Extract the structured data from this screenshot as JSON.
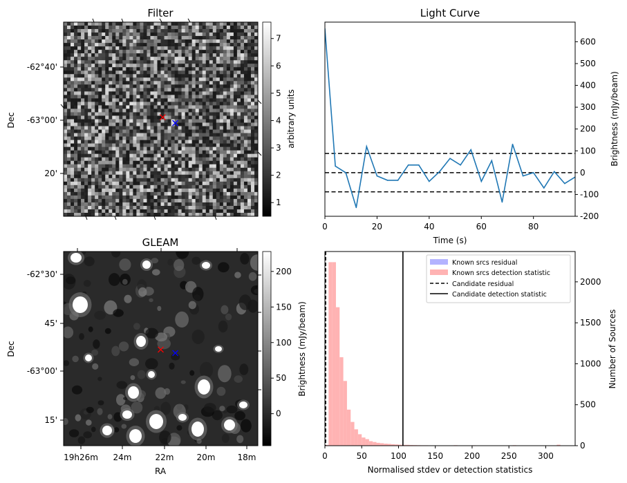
{
  "chart_data": [
    {
      "type": "heatmap",
      "title": "Filter",
      "ylabel": "Dec",
      "y_ticks": [
        "-62°40'",
        "-63°00'",
        "20'"
      ],
      "colorbar": {
        "label": "arbitrary units",
        "ticks": [
          "1",
          "2",
          "3",
          "4",
          "5",
          "6",
          "7"
        ],
        "range": [
          0.5,
          7.6
        ],
        "colormap": "gray"
      },
      "markers": [
        {
          "symbol": "x",
          "color": "#ff0000",
          "ra_frac": 0.51,
          "dec_frac": 0.49
        },
        {
          "symbol": "x",
          "color": "#0000ff",
          "ra_frac": 0.575,
          "dec_frac": 0.52
        }
      ]
    },
    {
      "type": "line",
      "title": "Light Curve",
      "xlabel": "Time (s)",
      "ylabel": "Brightness (mJy/beam)",
      "xlim": [
        0,
        96
      ],
      "ylim": [
        -200,
        690
      ],
      "x_ticks": [
        0,
        20,
        40,
        60,
        80
      ],
      "y_ticks": [
        -200,
        -100,
        0,
        100,
        200,
        300,
        400,
        500,
        600
      ],
      "series": [
        {
          "color": "#1f77b4",
          "x": [
            0,
            4,
            8,
            12,
            16,
            20,
            24,
            28,
            32,
            36,
            40,
            44,
            48,
            52,
            56,
            60,
            64,
            68,
            72,
            76,
            80,
            84,
            88,
            92,
            96
          ],
          "y": [
            660,
            30,
            0,
            -160,
            120,
            -15,
            -35,
            -35,
            35,
            35,
            -40,
            5,
            65,
            35,
            105,
            -40,
            55,
            -135,
            130,
            -15,
            0,
            -70,
            5,
            -50,
            -20
          ]
        }
      ],
      "hlines": [
        {
          "y": 88,
          "style": "dashed",
          "color": "#000000"
        },
        {
          "y": 0,
          "style": "dashed",
          "color": "#000000"
        },
        {
          "y": -88,
          "style": "dashed",
          "color": "#000000"
        }
      ]
    },
    {
      "type": "heatmap",
      "title": "GLEAM",
      "xlabel": "RA",
      "ylabel": "Dec",
      "x_ticks": [
        "19h26m",
        "24m",
        "22m",
        "20m",
        "18m"
      ],
      "y_ticks": [
        "-62°30'",
        "45'",
        "-63°00'",
        "15'"
      ],
      "colorbar": {
        "label": "Brightness (mJy/beam)",
        "ticks": [
          "0",
          "50",
          "100",
          "150",
          "200"
        ],
        "range": [
          -45,
          228
        ],
        "colormap": "gray"
      },
      "markers": [
        {
          "symbol": "x",
          "color": "#ff0000",
          "ra_frac": 0.5,
          "dec_frac": 0.505
        },
        {
          "symbol": "x",
          "color": "#0000ff",
          "ra_frac": 0.575,
          "dec_frac": 0.523
        }
      ]
    },
    {
      "type": "bar",
      "xlabel": "Normalised stdev or detection statistics",
      "ylabel": "Number of Sources",
      "xlim": [
        0,
        340
      ],
      "ylim": [
        0,
        2370
      ],
      "x_ticks": [
        0,
        50,
        100,
        150,
        200,
        250,
        300
      ],
      "y_ticks": [
        0,
        500,
        1000,
        1500,
        2000
      ],
      "histogram": {
        "name": "Known srcs detection statistic",
        "color": "#ffb3b3",
        "bin_width": 5,
        "bin_starts": [
          0,
          5,
          10,
          15,
          20,
          25,
          30,
          35,
          40,
          45,
          50,
          55,
          60,
          65,
          70,
          75,
          80,
          85,
          90,
          95,
          100,
          105,
          110,
          115,
          120,
          125,
          130,
          135,
          140,
          145,
          150,
          155,
          160,
          175,
          200,
          255,
          315
        ],
        "counts": [
          10,
          2240,
          2240,
          1690,
          1080,
          790,
          440,
          290,
          200,
          140,
          100,
          80,
          55,
          45,
          35,
          30,
          25,
          22,
          18,
          15,
          12,
          10,
          10,
          8,
          7,
          6,
          5,
          5,
          4,
          3,
          3,
          3,
          2,
          6,
          5,
          6,
          12
        ]
      },
      "vlines": [
        {
          "name": "Candidate residual",
          "x": 1,
          "style": "dashed",
          "color": "#000000"
        },
        {
          "name": "Candidate detection statistic",
          "x": 106,
          "style": "solid",
          "color": "#000000"
        }
      ],
      "legend": {
        "position": "top-right",
        "entries": [
          {
            "label": "Known srcs residual",
            "kind": "patch",
            "color": "#b3b3ff"
          },
          {
            "label": "Known srcs detection statistic",
            "kind": "patch",
            "color": "#ffb3b3"
          },
          {
            "label": "Candidate residual",
            "kind": "dashed",
            "color": "#000000"
          },
          {
            "label": "Candidate detection statistic",
            "kind": "solid",
            "color": "#000000"
          }
        ]
      }
    }
  ]
}
